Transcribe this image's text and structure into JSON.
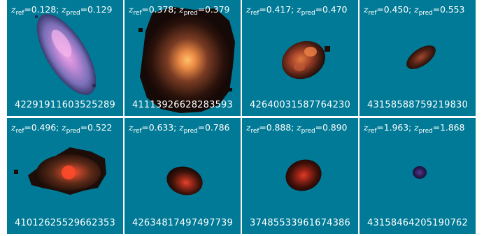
{
  "panels": [
    {
      "z_ref": "0.128",
      "z_pred": "0.129",
      "object_id": "42291911603525289"
    },
    {
      "z_ref": "0.378",
      "z_pred": "0.379",
      "object_id": "41113926628283593"
    },
    {
      "z_ref": "0.417",
      "z_pred": "0.470",
      "object_id": "42640031587764230"
    },
    {
      "z_ref": "0.450",
      "z_pred": "0.553",
      "object_id": "43158588759219830"
    },
    {
      "z_ref": "0.496",
      "z_pred": "0.522",
      "object_id": "41012625529662353"
    },
    {
      "z_ref": "0.633",
      "z_pred": "0.786",
      "object_id": "42634817497497739"
    },
    {
      "z_ref": "0.888",
      "z_pred": "0.890",
      "object_id": "37485533961674386"
    },
    {
      "z_ref": "1.963",
      "z_pred": "1.868",
      "object_id": "43158464205190762"
    }
  ],
  "labels": {
    "z_symbol": "z",
    "ref_sub": "ref",
    "pred_sub": "pred"
  },
  "colors": {
    "panel_bg": "#007a96",
    "text": "#ffffff"
  }
}
